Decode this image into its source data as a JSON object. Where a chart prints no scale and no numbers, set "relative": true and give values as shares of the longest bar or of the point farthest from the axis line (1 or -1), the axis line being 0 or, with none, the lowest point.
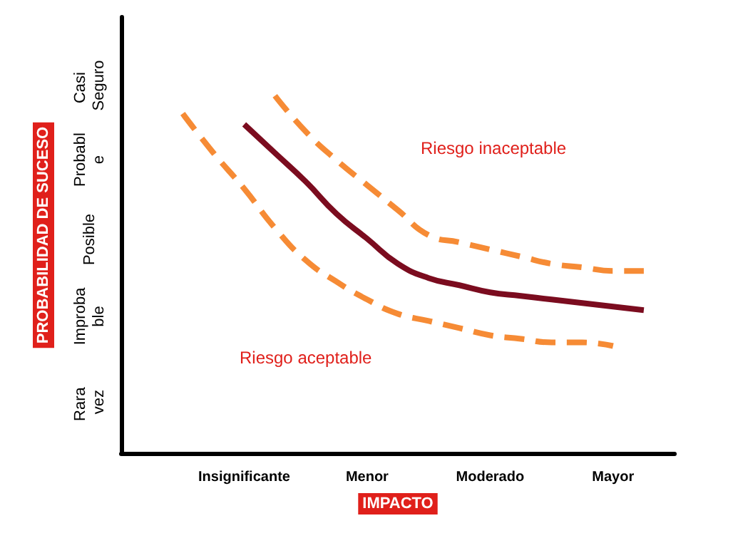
{
  "chart_data": {
    "type": "line",
    "xlabel": "IMPACTO",
    "ylabel": "PROBABILIDAD DE SUCESO",
    "relative": true,
    "categories": [
      null,
      null,
      null,
      null,
      "Insignificante",
      null,
      null,
      null,
      "Menor",
      null,
      null,
      null,
      "Moderado",
      null,
      null,
      null,
      "Mayor",
      null,
      null
    ],
    "marker": "none",
    "annotations": [
      "Riesgo inaceptable",
      "Riesgo aceptable",
      "Rara vez",
      "Improbable",
      "Posible",
      "Probable",
      "Casi Seguro"
    ],
    "series": [
      {
        "color": "#f68b35",
        "line_style": "dashed",
        "values": [
          null,
          null,
          null,
          null,
          null,
          1,
          0.9,
          0.82,
          0.75,
          0.68,
          0.61,
          0.59,
          0.57,
          0.55,
          0.53,
          0.52,
          0.51,
          0.51,
          null
        ]
      },
      {
        "color": "#7b0c1f",
        "line_style": "solid",
        "values": [
          null,
          null,
          null,
          null,
          0.92,
          0.84,
          0.76,
          0.67,
          0.6,
          0.53,
          0.49,
          0.47,
          0.45,
          0.44,
          0.43,
          0.42,
          0.41,
          0.4,
          null
        ]
      },
      {
        "color": "#f68b35",
        "line_style": "dashed",
        "values": [
          null,
          null,
          0.95,
          0.84,
          0.74,
          0.63,
          0.54,
          0.48,
          0.43,
          0.39,
          0.37,
          0.35,
          0.33,
          0.32,
          0.31,
          0.31,
          0.3,
          null,
          null
        ]
      }
    ]
  }
}
